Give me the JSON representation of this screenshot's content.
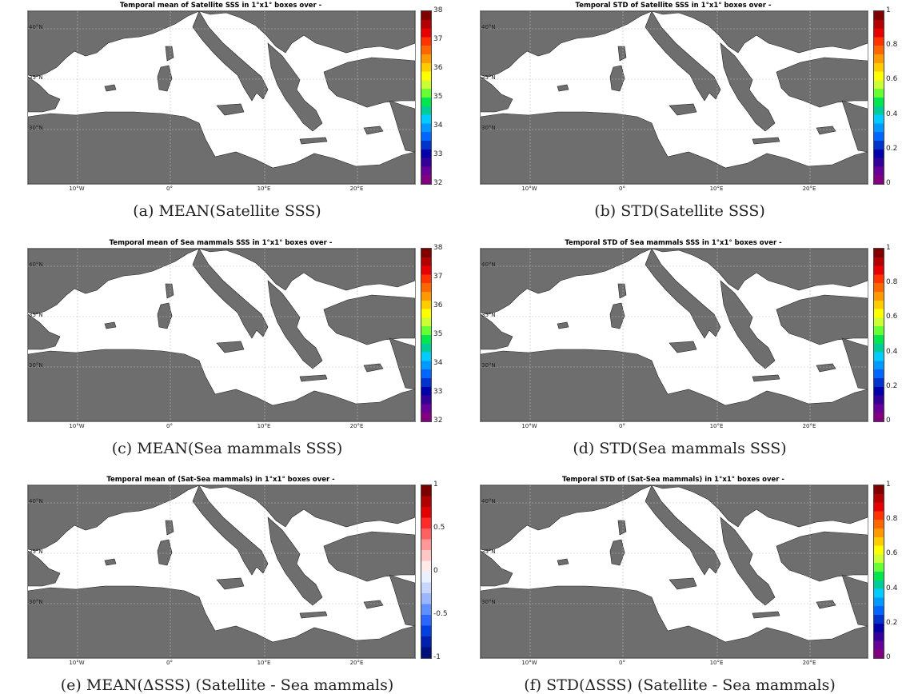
{
  "panels": [
    {
      "title": "Temporal mean of Satellite SSS in 1°x1° boxes over -",
      "caption": "(a) MEAN(Satellite SSS)",
      "lat_labels": [
        "40°N",
        "35°N",
        "30°N"
      ],
      "lon_labels": [
        "10°W",
        "0°",
        "10°E",
        "20°E"
      ],
      "colorbar": {
        "type": "jet",
        "ticks": [
          "38",
          "37",
          "36",
          "35",
          "34",
          "33",
          "32"
        ]
      }
    },
    {
      "title": "Temporal STD of Satellite SSS in 1°x1° boxes over -",
      "caption": "(b) STD(Satellite SSS)",
      "lat_labels": [
        "40°N",
        "35°N",
        "30°N"
      ],
      "lon_labels": [
        "10°W",
        "0°",
        "10°E",
        "20°E"
      ],
      "colorbar": {
        "type": "jet",
        "ticks": [
          "1",
          "0.8",
          "0.6",
          "0.4",
          "0.2",
          "0"
        ]
      }
    },
    {
      "title": "Temporal mean of Sea mammals SSS in 1°x1° boxes over -",
      "caption": "(c) MEAN(Sea mammals SSS)",
      "lat_labels": [
        "40°N",
        "35°N",
        "30°N"
      ],
      "lon_labels": [
        "10°W",
        "0°",
        "10°E",
        "20°E"
      ],
      "colorbar": {
        "type": "jet",
        "ticks": [
          "38",
          "37",
          "36",
          "35",
          "34",
          "33",
          "32"
        ]
      }
    },
    {
      "title": "Temporal STD of Sea mammals SSS in 1°x1° boxes over -",
      "caption": "(d) STD(Sea mammals SSS)",
      "lat_labels": [
        "40°N",
        "35°N",
        "30°N"
      ],
      "lon_labels": [
        "10°W",
        "0°",
        "10°E",
        "20°E"
      ],
      "colorbar": {
        "type": "jet",
        "ticks": [
          "1",
          "0.8",
          "0.6",
          "0.4",
          "0.2",
          "0"
        ]
      }
    },
    {
      "title": "Temporal mean of (Sat-Sea mammals) in 1°x1° boxes over -",
      "caption": "(e) MEAN(ΔSSS) (Satellite - Sea mammals)",
      "lat_labels": [
        "40°N",
        "35°N",
        "30°N"
      ],
      "lon_labels": [
        "10°W",
        "0°",
        "10°E",
        "20°E"
      ],
      "colorbar": {
        "type": "diverging",
        "ticks": [
          "1",
          "0.5",
          "0",
          "-0.5",
          "-1"
        ]
      }
    },
    {
      "title": "Temporal STD of (Sat-Sea mammals) in 1°x1° boxes over -",
      "caption": "(f) STD(ΔSSS) (Satellite - Sea mammals)",
      "lat_labels": [
        "40°N",
        "35°N",
        "30°N"
      ],
      "lon_labels": [
        "10°W",
        "0°",
        "10°E",
        "20°E"
      ],
      "colorbar": {
        "type": "jet",
        "ticks": [
          "1",
          "0.8",
          "0.6",
          "0.4",
          "0.2",
          "0"
        ]
      }
    }
  ],
  "colors": {
    "land": "#6e6e6e",
    "sea": "#ffffff",
    "grid": "#bbbbbb"
  }
}
